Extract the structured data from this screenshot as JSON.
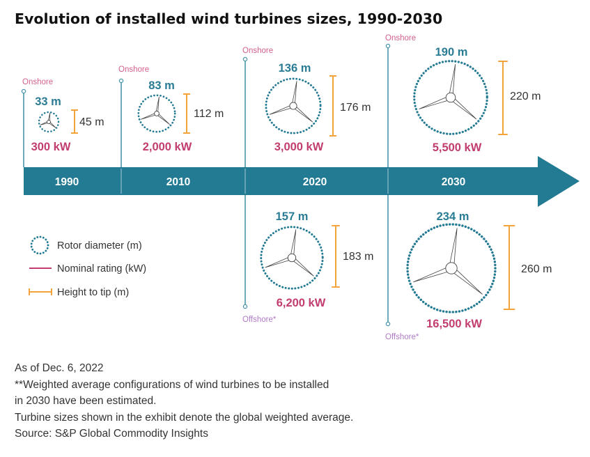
{
  "title": "Evolution of installed wind turbines sizes, 1990-2030",
  "colors": {
    "timeline": "#237a93",
    "rotor": "#237a93",
    "rating": "#c23d6f",
    "height_bar": "#f2a43a",
    "onshore_tag": "#d3608e",
    "offshore_tag": "#b07ac4",
    "stem": "#4b95ac"
  },
  "chart_data": {
    "type": "table",
    "title": "Evolution of installed wind turbines sizes, 1990-2030",
    "years": [
      "1990",
      "2010",
      "2020",
      "2030"
    ],
    "onshore_label": "Onshore",
    "offshore_label": "Offshore*",
    "turbines": [
      {
        "year": "1990",
        "setting": "onshore",
        "rotor_diameter_m": 33,
        "diameter_label": "33 m",
        "rating_kw": 300,
        "rating_label": "300 kW",
        "height_tip_m": 45,
        "height_label": "45 m"
      },
      {
        "year": "2010",
        "setting": "onshore",
        "rotor_diameter_m": 83,
        "diameter_label": "83 m",
        "rating_kw": 2000,
        "rating_label": "2,000 kW",
        "height_tip_m": 112,
        "height_label": "112 m"
      },
      {
        "year": "2020",
        "setting": "onshore",
        "rotor_diameter_m": 136,
        "diameter_label": "136 m",
        "rating_kw": 3000,
        "rating_label": "3,000 kW",
        "height_tip_m": 176,
        "height_label": "176 m"
      },
      {
        "year": "2030",
        "setting": "onshore",
        "rotor_diameter_m": 190,
        "diameter_label": "190 m",
        "rating_kw": 5500,
        "rating_label": "5,500 kW",
        "height_tip_m": 220,
        "height_label": "220 m"
      },
      {
        "year": "2020",
        "setting": "offshore",
        "rotor_diameter_m": 157,
        "diameter_label": "157 m",
        "rating_kw": 6200,
        "rating_label": "6,200 kW",
        "height_tip_m": 183,
        "height_label": "183 m"
      },
      {
        "year": "2030",
        "setting": "offshore",
        "rotor_diameter_m": 234,
        "diameter_label": "234 m",
        "rating_kw": 16500,
        "rating_label": "16,500 kW",
        "height_tip_m": 260,
        "height_label": "260 m"
      }
    ],
    "legend": [
      {
        "key": "rotor",
        "label": "Rotor diameter (m)"
      },
      {
        "key": "rating",
        "label": "Nominal rating (kW)"
      },
      {
        "key": "height",
        "label": "Height to tip (m)"
      }
    ]
  },
  "notes": [
    "As of Dec. 6, 2022",
    "**Weighted average configurations of wind turbines to be installed",
    "in 2030 have been estimated.",
    "Turbine sizes shown in the exhibit denote the global weighted average.",
    "Source: S&P Global Commodity Insights"
  ]
}
